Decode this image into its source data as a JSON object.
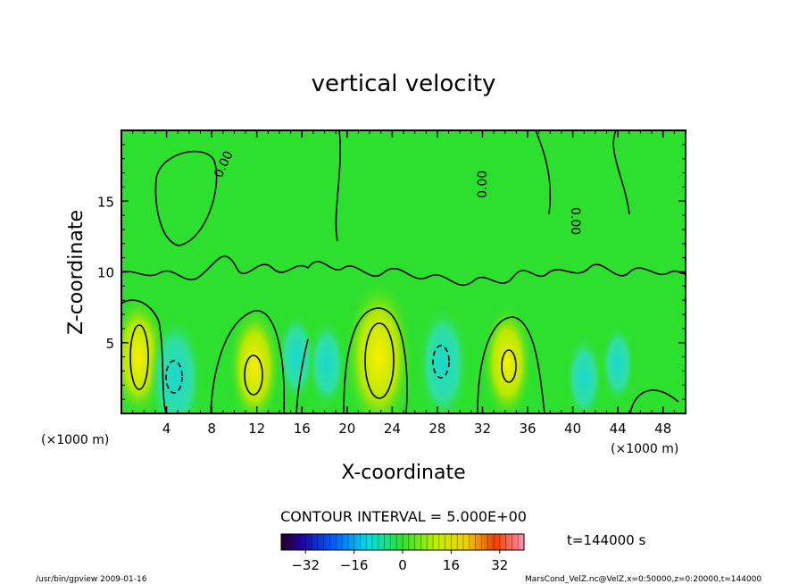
{
  "chart_data": {
    "type": "heatmap",
    "title": "vertical velocity",
    "xlabel": "X-coordinate",
    "ylabel": "Z-coordinate",
    "x_unit_left": "(×1000 m)",
    "x_unit_right": "(×1000 m)",
    "xlim": [
      0,
      50
    ],
    "ylim": [
      0,
      20
    ],
    "x_ticks": [
      "4",
      "8",
      "12",
      "16",
      "20",
      "24",
      "28",
      "32",
      "36",
      "40",
      "44",
      "48"
    ],
    "x_tick_values": [
      4,
      8,
      12,
      16,
      20,
      24,
      28,
      32,
      36,
      40,
      44,
      48
    ],
    "y_ticks": [
      "5",
      "10",
      "15"
    ],
    "y_tick_values": [
      5,
      10,
      15
    ],
    "contour_interval_label": "CONTOUR INTERVAL = 5.000E+00",
    "zero_contour_label": "0.00",
    "time_label": "t=144000 s",
    "colorbar": {
      "min": -40,
      "max": 40,
      "ticks": [
        "−32",
        "−16",
        "0",
        "16",
        "32"
      ],
      "tick_values": [
        -32,
        -16,
        0,
        16,
        32
      ]
    },
    "cells": [
      {
        "x": 1.5,
        "z": 4.0,
        "value": 18
      },
      {
        "x": 4.8,
        "z": 2.5,
        "value": -18
      },
      {
        "x": 11.8,
        "z": 3.3,
        "value": 17
      },
      {
        "x": 15.5,
        "z": 4.0,
        "value": -8
      },
      {
        "x": 18.2,
        "z": 3.5,
        "value": -8
      },
      {
        "x": 22.8,
        "z": 4.0,
        "value": 27
      },
      {
        "x": 28.5,
        "z": 3.5,
        "value": -16
      },
      {
        "x": 34.2,
        "z": 3.6,
        "value": 16
      },
      {
        "x": 41.0,
        "z": 2.5,
        "value": -7
      },
      {
        "x": 44.0,
        "z": 3.5,
        "value": -5
      }
    ],
    "colors": {
      "background": "#2ee02e",
      "positive_high": "#f0f000",
      "negative_low": "#20d8c8",
      "contour_line": "#000000"
    }
  },
  "footer": {
    "left": "/usr/bin/gpview   2009-01-16",
    "right": "MarsCond_VelZ.nc@VelZ,x=0:50000,z=0:20000,t=144000"
  }
}
